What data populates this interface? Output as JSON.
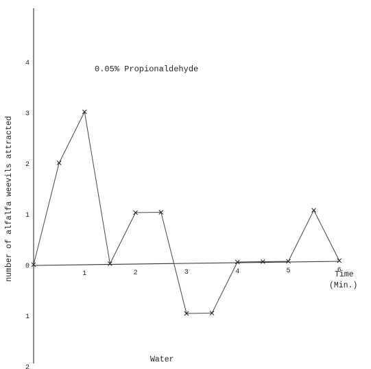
{
  "chart_data": {
    "type": "line",
    "title": "0.05% Propionaldehyde",
    "ylabel": "number of alfalfa weevils attracted",
    "xlabel": [
      "Time",
      "(Min.)"
    ],
    "bottom_label": "Water",
    "x_ticks": [
      "1",
      "2",
      "3",
      "4",
      "5",
      "6"
    ],
    "y_ticks_up": [
      "1",
      "2",
      "3",
      "4"
    ],
    "zero_label": "0",
    "y_ticks_down": [
      "1",
      "2"
    ],
    "xlim": [
      0,
      6
    ],
    "ylim": [
      -2,
      4.7
    ],
    "grid": false,
    "x": [
      0,
      0.5,
      1,
      1.5,
      2,
      2.5,
      3,
      3.5,
      4,
      4.5,
      5,
      5.5,
      6
    ],
    "y": [
      0,
      2,
      3,
      0,
      1,
      1,
      -1,
      -1,
      0,
      0,
      0,
      1,
      0
    ]
  }
}
